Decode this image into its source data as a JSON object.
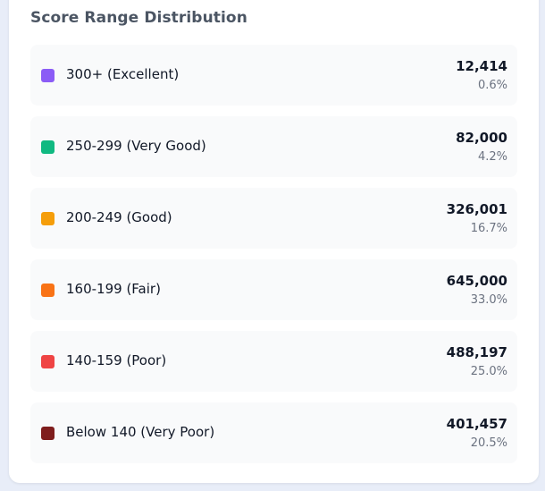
{
  "panel": {
    "title": "Score Range Distribution"
  },
  "ranges": [
    {
      "label": "300+ (Excellent)",
      "count": "12,414",
      "percent": "0.6%",
      "color": "#8b5cf6"
    },
    {
      "label": "250-299 (Very Good)",
      "count": "82,000",
      "percent": "4.2%",
      "color": "#10b981"
    },
    {
      "label": "200-249 (Good)",
      "count": "326,001",
      "percent": "16.7%",
      "color": "#f59e0b"
    },
    {
      "label": "160-199 (Fair)",
      "count": "645,000",
      "percent": "33.0%",
      "color": "#f97316"
    },
    {
      "label": "140-159 (Poor)",
      "count": "488,197",
      "percent": "25.0%",
      "color": "#ef4444"
    },
    {
      "label": "Below 140 (Very Poor)",
      "count": "401,457",
      "percent": "20.5%",
      "color": "#7f1d1d"
    }
  ]
}
